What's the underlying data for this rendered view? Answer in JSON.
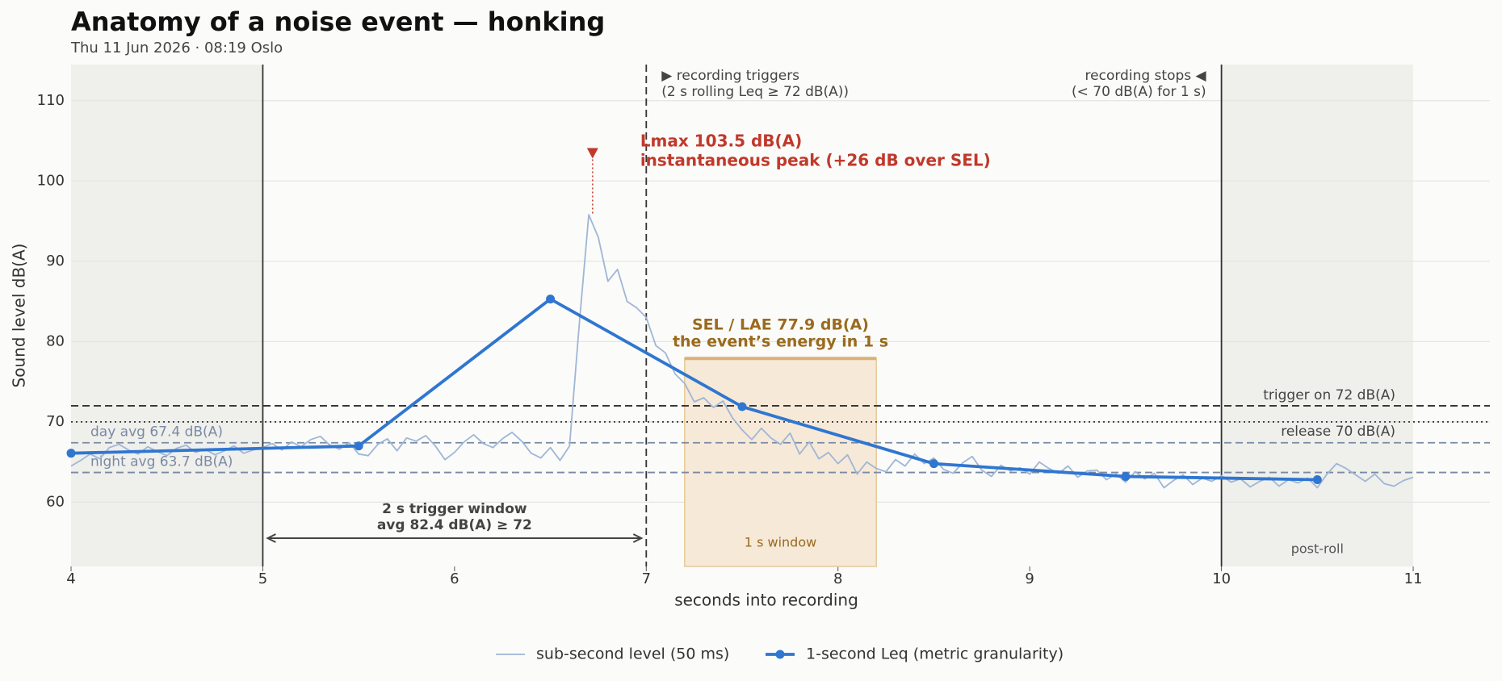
{
  "chart_data": {
    "type": "line",
    "title": "Anatomy of a noise event — honking",
    "subtitle": "Thu 11 Jun 2026 · 08:19 Oslo",
    "x_label": "seconds into recording",
    "y_label": "Sound level  dB(A)",
    "xlim": [
      4,
      11.4
    ],
    "ylim": [
      52,
      114.5
    ],
    "xticks": [
      4,
      5,
      6,
      7,
      8,
      9,
      10,
      11
    ],
    "yticks": [
      60,
      70,
      80,
      90,
      100,
      110
    ],
    "grid": true,
    "legend": "bottom",
    "series": [
      {
        "name": "sub-second level (50 ms)",
        "color": "#9fb6d6",
        "markers": false,
        "x": [
          4,
          4.05,
          4.1,
          4.15,
          4.2,
          4.25,
          4.3,
          4.35,
          4.4,
          4.45,
          4.5,
          4.55,
          4.6,
          4.65,
          4.7,
          4.75,
          4.8,
          4.85,
          4.9,
          4.95,
          5,
          5.05,
          5.1,
          5.15,
          5.2,
          5.25,
          5.3,
          5.35,
          5.4,
          5.45,
          5.5,
          5.55,
          5.6,
          5.65,
          5.7,
          5.75,
          5.8,
          5.85,
          5.9,
          5.95,
          6,
          6.05,
          6.1,
          6.15,
          6.2,
          6.25,
          6.3,
          6.35,
          6.4,
          6.45,
          6.5,
          6.55,
          6.6,
          6.65,
          6.7,
          6.75,
          6.8,
          6.85,
          6.9,
          6.95,
          7,
          7.05,
          7.1,
          7.15,
          7.2,
          7.25,
          7.3,
          7.35,
          7.4,
          7.45,
          7.5,
          7.55,
          7.6,
          7.65,
          7.7,
          7.75,
          7.8,
          7.85,
          7.9,
          7.95,
          8,
          8.05,
          8.1,
          8.15,
          8.2,
          8.25,
          8.3,
          8.35,
          8.4,
          8.45,
          8.5,
          8.55,
          8.6,
          8.65,
          8.7,
          8.75,
          8.8,
          8.85,
          8.9,
          8.95,
          9,
          9.05,
          9.1,
          9.15,
          9.2,
          9.25,
          9.3,
          9.35,
          9.4,
          9.45,
          9.5,
          9.55,
          9.6,
          9.65,
          9.7,
          9.75,
          9.8,
          9.85,
          9.9,
          9.95,
          10,
          10.05,
          10.1,
          10.15,
          10.2,
          10.25,
          10.3,
          10.35,
          10.4,
          10.45,
          10.5,
          10.55,
          10.6,
          10.65,
          10.7,
          10.75,
          10.8,
          10.85,
          10.9,
          10.95,
          11
        ],
        "values": [
          64.5,
          65.2,
          66.0,
          65.4,
          66.8,
          67.2,
          66.5,
          66.0,
          66.9,
          66.3,
          65.8,
          66.7,
          67.1,
          66.2,
          66.6,
          65.9,
          66.4,
          67.0,
          66.1,
          66.5,
          66.8,
          67.3,
          66.5,
          67.5,
          66.9,
          67.8,
          68.2,
          67.1,
          66.6,
          67.4,
          66.0,
          65.8,
          67.2,
          67.9,
          66.4,
          68.0,
          67.6,
          68.3,
          67.0,
          65.3,
          66.2,
          67.5,
          68.4,
          67.3,
          66.8,
          67.9,
          68.7,
          67.6,
          66.1,
          65.5,
          66.8,
          65.2,
          67.0,
          82.0,
          95.8,
          93.0,
          87.5,
          89.0,
          85.0,
          84.2,
          83.0,
          79.5,
          78.6,
          76.0,
          74.8,
          72.5,
          73.0,
          71.8,
          72.6,
          70.5,
          69.0,
          67.8,
          69.2,
          68.0,
          67.2,
          68.6,
          66.0,
          67.5,
          65.4,
          66.2,
          64.8,
          65.9,
          63.5,
          65.0,
          64.2,
          63.8,
          65.3,
          64.5,
          66.0,
          64.8,
          65.5,
          64.1,
          63.6,
          64.9,
          65.7,
          64.0,
          63.2,
          64.6,
          63.9,
          64.3,
          63.5,
          65.0,
          64.2,
          63.6,
          64.5,
          63.1,
          63.9,
          64.0,
          62.8,
          63.5,
          62.5,
          63.8,
          62.9,
          63.6,
          61.8,
          62.7,
          63.4,
          62.2,
          63.0,
          62.6,
          63.3,
          62.5,
          62.9,
          61.9,
          62.6,
          63.1,
          62.0,
          62.8,
          62.4,
          63.0,
          61.8,
          63.5,
          64.8,
          64.2,
          63.4,
          62.6,
          63.5,
          62.3,
          62.0,
          62.7,
          63.1
        ]
      },
      {
        "name": "1-second Leq (metric granularity)",
        "color": "#2f76d0",
        "markers": true,
        "x": [
          4,
          5.5,
          6.5,
          7.5,
          8.5,
          9.5,
          10.5
        ],
        "values": [
          66.1,
          67.0,
          85.3,
          71.9,
          64.8,
          63.2,
          62.8
        ]
      }
    ],
    "shaded": [
      {
        "range": [
          4,
          5
        ],
        "color": "#efefeb"
      },
      {
        "range": [
          10,
          11
        ],
        "color": "#efefeb",
        "label": "post-roll"
      }
    ],
    "vlines": [
      {
        "value": 5,
        "style": "solid",
        "color": "#333333"
      },
      {
        "value": 7,
        "style": "dashed",
        "color": "#333333"
      },
      {
        "value": 10,
        "style": "solid",
        "color": "#333333"
      }
    ],
    "hlines": [
      {
        "value": 72,
        "style": "dashed",
        "color": "#333333",
        "label": "trigger on  72 dB(A)",
        "label_anchor": "right",
        "label_side": "above"
      },
      {
        "value": 70,
        "style": "dotted",
        "color": "#333333",
        "label": "release  70 dB(A)",
        "label_anchor": "right",
        "label_side": "below"
      },
      {
        "value": 67.4,
        "style": "dashed",
        "color": "#7a8aa6",
        "label": "day avg  67.4 dB(A)",
        "label_anchor": "left",
        "label_side": "above"
      },
      {
        "value": 63.7,
        "style": "dashed",
        "color": "#7a8aa6",
        "label": "night avg  63.7 dB(A)",
        "label_anchor": "left",
        "label_side": "above"
      }
    ],
    "trigger_note": [
      "▶ recording triggers",
      "(2 s rolling Leq ≥ 72 dB(A))"
    ],
    "stop_note": [
      "recording stops ◀",
      "(< 70 dB(A) for 1 s)"
    ],
    "peak": {
      "x": 6.72,
      "value": 103.5,
      "color": "#c0392b",
      "label": [
        "Lmax  103.5 dB(A)",
        "instantaneous peak  (+26 dB over SEL)"
      ]
    },
    "sel": {
      "range": [
        7.2,
        8.2
      ],
      "value": 77.9,
      "color": "#9a6a1f",
      "fill": "#f6e9d8",
      "label": [
        "SEL / LAE  77.9 dB(A)",
        "the event’s energy in 1 s"
      ],
      "window_label": "1 s window"
    },
    "trigger_window": {
      "range": [
        5,
        7
      ],
      "label": [
        "2 s trigger window",
        "avg 82.4 dB(A) ≥ 72"
      ]
    }
  }
}
